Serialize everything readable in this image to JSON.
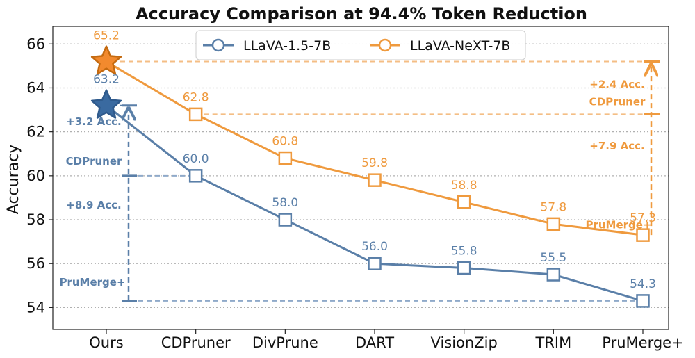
{
  "colors": {
    "llava15": "#5a7fa8",
    "llava15_star": "#3a6aa0",
    "next": "#ef9a3e",
    "next_star": "#f28a2e",
    "grid": "#b0b0b0"
  },
  "chart_data": {
    "type": "line",
    "title": "Accuracy Comparison at 94.4% Token Reduction",
    "xlabel": "",
    "ylabel": "Accuracy",
    "categories": [
      "Ours",
      "CDPruner",
      "DivPrune",
      "DART",
      "VisionZip",
      "TRIM",
      "PruMerge+"
    ],
    "ylim": [
      53,
      66.8
    ],
    "yticks": [
      54,
      56,
      58,
      60,
      62,
      64,
      66
    ],
    "grid": "horizontal dotted",
    "legend_position": "top",
    "series": [
      {
        "name": "LLaVA-1.5-7B",
        "values": [
          63.2,
          60.0,
          58.0,
          56.0,
          55.8,
          55.5,
          54.3
        ],
        "labels": [
          "63.2",
          "60.0",
          "58.0",
          "56.0",
          "55.8",
          "55.5",
          "54.3"
        ]
      },
      {
        "name": "LLaVA-NeXT-7B",
        "values": [
          65.2,
          62.8,
          60.8,
          59.8,
          58.8,
          57.8,
          57.3
        ],
        "labels": [
          "65.2",
          "62.8",
          "60.8",
          "59.8",
          "58.8",
          "57.8",
          "57.3"
        ]
      }
    ],
    "annotations": {
      "llava15": {
        "gain_cdpruner": "+3.2 Acc.",
        "cdpruner": "CDPruner",
        "gain_prumerge": "+8.9 Acc.",
        "prumerge": "PruMerge+"
      },
      "next": {
        "gain_cdpruner": "+2.4 Acc.",
        "cdpruner": "CDPruner",
        "gain_prumerge": "+7.9 Acc.",
        "prumerge": "PruMerge+"
      }
    }
  }
}
